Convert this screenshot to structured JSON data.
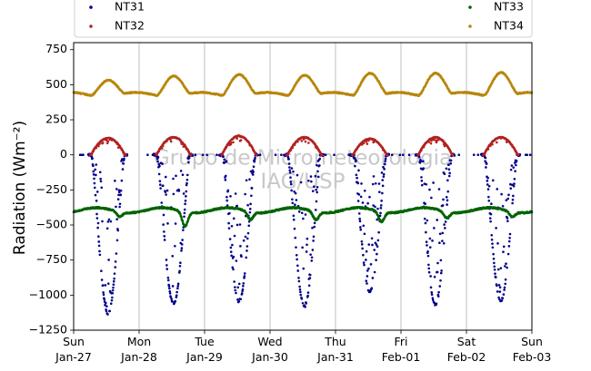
{
  "chart_data": {
    "type": "scatter",
    "title": "",
    "xlabel": "",
    "ylabel": "Radiation (Wm⁻²)",
    "ylim": [
      -1250,
      800
    ],
    "xlim_days": [
      "Jan-27",
      "Feb-03"
    ],
    "yticks": [
      750,
      500,
      250,
      0,
      -250,
      -500,
      -750,
      -1000,
      -1250
    ],
    "ytick_labels": [
      "750",
      "500",
      "250",
      "0",
      "−250",
      "−500",
      "−750",
      "−1000",
      "−1250"
    ],
    "xticks": [
      {
        "day": "Sun",
        "date": "Jan-27"
      },
      {
        "day": "Mon",
        "date": "Jan-28"
      },
      {
        "day": "Tue",
        "date": "Jan-29"
      },
      {
        "day": "Wed",
        "date": "Jan-30"
      },
      {
        "day": "Thu",
        "date": "Jan-31"
      },
      {
        "day": "Fri",
        "date": "Feb-01"
      },
      {
        "day": "Sat",
        "date": "Feb-02"
      },
      {
        "day": "Sun",
        "date": "Feb-03"
      }
    ],
    "grid": "vertical",
    "legend_position": "top",
    "watermark": [
      "Grupo de Micrometeorologia",
      "IAG/USP"
    ],
    "series": [
      {
        "name": "NT31",
        "color": "#00008b",
        "marker": "dot",
        "nighttime_value": 0,
        "daily_minimum": [
          {
            "date": "Jan-27",
            "value": -1130
          },
          {
            "date": "Jan-28",
            "value": -1060
          },
          {
            "date": "Jan-29",
            "value": -1050
          },
          {
            "date": "Jan-30",
            "value": -1080
          },
          {
            "date": "Jan-31",
            "value": -975
          },
          {
            "date": "Feb-01",
            "value": -1065
          },
          {
            "date": "Feb-02",
            "value": -1040
          }
        ]
      },
      {
        "name": "NT32",
        "color": "#b22222",
        "marker": "dot",
        "nighttime_value": 0,
        "daily_maximum": [
          {
            "date": "Jan-27",
            "value": 120
          },
          {
            "date": "Jan-28",
            "value": 125
          },
          {
            "date": "Jan-29",
            "value": 135
          },
          {
            "date": "Jan-30",
            "value": 125
          },
          {
            "date": "Jan-31",
            "value": 115
          },
          {
            "date": "Feb-01",
            "value": 125
          },
          {
            "date": "Feb-02",
            "value": 125
          }
        ]
      },
      {
        "name": "NT33",
        "color": "#006400",
        "marker": "dot",
        "baseline_range": [
          -440,
          -360
        ],
        "daily_dip_minimum": [
          {
            "date": "Jan-27",
            "value": -430
          },
          {
            "date": "Jan-28",
            "value": -500
          },
          {
            "date": "Jan-29",
            "value": -450
          },
          {
            "date": "Jan-30",
            "value": -455
          },
          {
            "date": "Jan-31",
            "value": -465
          },
          {
            "date": "Feb-01",
            "value": -440
          },
          {
            "date": "Feb-02",
            "value": -430
          }
        ]
      },
      {
        "name": "NT34",
        "color": "#b8860b",
        "marker": "dot",
        "nighttime_range": [
          410,
          440
        ],
        "daily_maximum": [
          {
            "date": "Jan-27",
            "value": 545
          },
          {
            "date": "Jan-28",
            "value": 575
          },
          {
            "date": "Jan-29",
            "value": 585
          },
          {
            "date": "Jan-30",
            "value": 580
          },
          {
            "date": "Jan-31",
            "value": 595
          },
          {
            "date": "Feb-01",
            "value": 595
          },
          {
            "date": "Feb-02",
            "value": 600
          }
        ]
      }
    ]
  }
}
